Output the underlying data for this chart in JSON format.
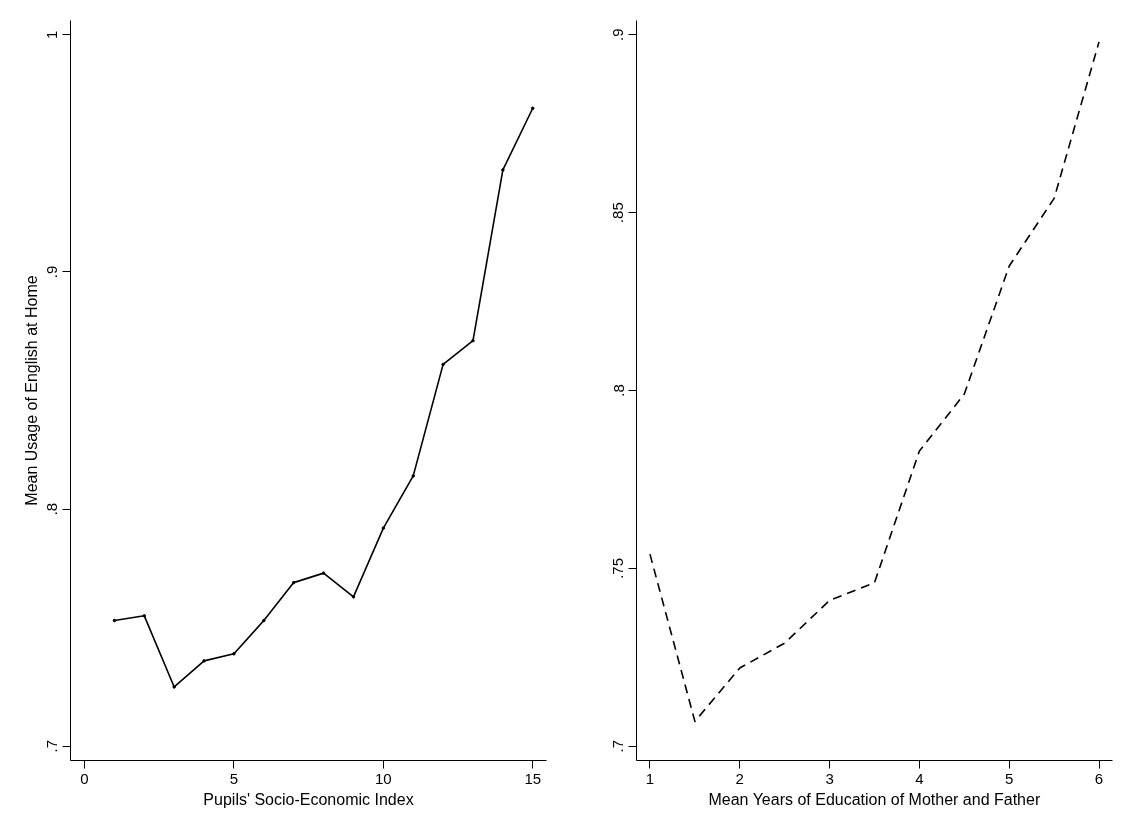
{
  "chart_data": [
    {
      "type": "line",
      "xlabel": "Pupils' Socio-Economic Index",
      "ylabel": "Mean Usage of English at Home",
      "x": [
        1,
        2,
        3,
        4,
        5,
        6,
        7,
        8,
        9,
        10,
        11,
        12,
        13,
        14,
        15
      ],
      "series": [
        {
          "color": "#000000",
          "values": [
            0.753,
            0.755,
            0.725,
            0.736,
            0.739,
            0.753,
            0.769,
            0.773,
            0.763,
            0.792,
            0.814,
            0.861,
            0.871,
            0.943,
            0.969
          ]
        }
      ],
      "xlim": [
        -0.47,
        15.46
      ],
      "ylim": [
        0.694,
        1.006
      ],
      "xticks": [
        0,
        5,
        10,
        15
      ],
      "yticks": [
        {
          "value": 0.7,
          "label": ".7"
        },
        {
          "value": 0.8,
          "label": ".8"
        },
        {
          "value": 0.9,
          "label": ".9"
        },
        1
      ],
      "grid": false,
      "marker": "circle",
      "line_style": "solid"
    },
    {
      "type": "line",
      "xlabel": "Mean Years of Education of Mother and Father",
      "x": [
        1,
        1.5,
        2,
        2.5,
        3,
        3.5,
        4,
        4.5,
        5,
        5.5,
        6
      ],
      "series": [
        {
          "color": "#000000",
          "values": [
            0.754,
            0.707,
            0.722,
            0.729,
            0.741,
            0.746,
            0.783,
            0.799,
            0.835,
            0.854,
            0.898
          ]
        }
      ],
      "xlim": [
        0.85,
        6.15
      ],
      "ylim": [
        0.696,
        0.904
      ],
      "xticks": [
        1,
        2,
        3,
        4,
        5,
        6
      ],
      "yticks": [
        {
          "value": 0.7,
          "label": ".7"
        },
        {
          "value": 0.75,
          "label": ".75"
        },
        {
          "value": 0.8,
          "label": ".8"
        },
        {
          "value": 0.85,
          "label": ".85"
        },
        {
          "value": 0.9,
          "label": ".9"
        }
      ],
      "grid": false,
      "marker": "none",
      "line_style": "dashed"
    }
  ]
}
